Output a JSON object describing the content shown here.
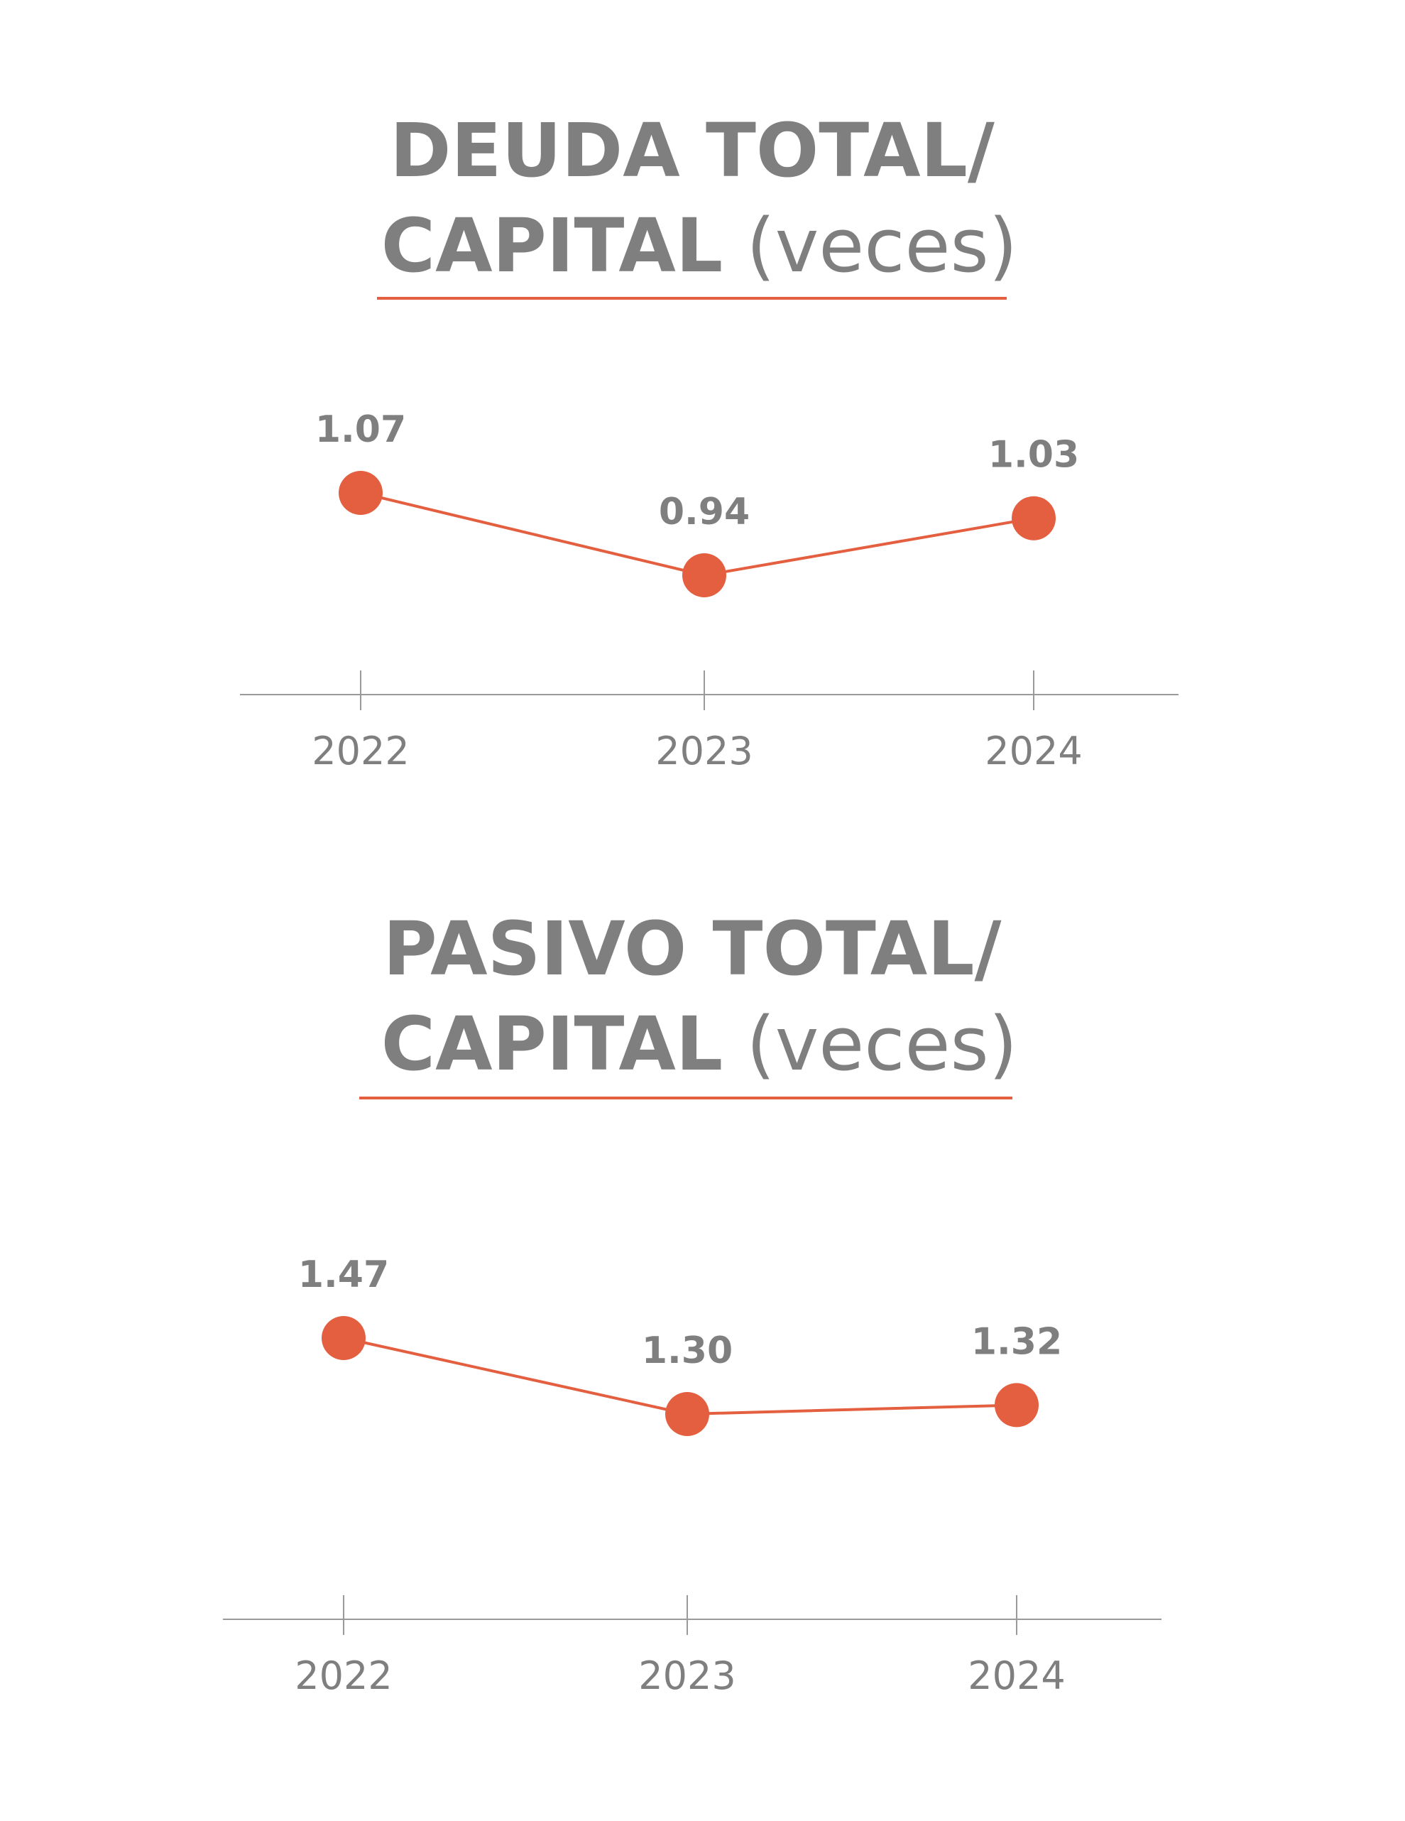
{
  "colors": {
    "text": "#7f7f7f",
    "accent": "#e45f3f",
    "axis": "#9a9a9a"
  },
  "chart_data": [
    {
      "type": "line",
      "title_bold_line1": "DEUDA TOTAL/",
      "title_bold_line2": "CAPITAL",
      "title_light": "(veces)",
      "categories": [
        "2022",
        "2023",
        "2024"
      ],
      "series": [
        {
          "values": [
            1.07,
            0.94,
            1.03
          ],
          "labels": [
            "1.07",
            "0.94",
            "1.03"
          ]
        }
      ],
      "xlabel": "",
      "ylabel": "",
      "grid": false
    },
    {
      "type": "line",
      "title_bold_line1": "PASIVO TOTAL/",
      "title_bold_line2": "CAPITAL",
      "title_light": "(veces)",
      "categories": [
        "2022",
        "2023",
        "2024"
      ],
      "series": [
        {
          "values": [
            1.47,
            1.3,
            1.32
          ],
          "labels": [
            "1.47",
            "1.30",
            "1.32"
          ]
        }
      ],
      "xlabel": "",
      "ylabel": "",
      "grid": false
    }
  ]
}
